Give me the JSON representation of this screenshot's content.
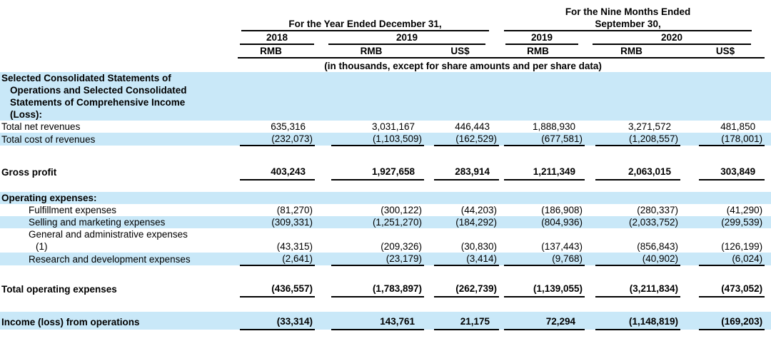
{
  "document": {
    "header": {
      "groups": [
        {
          "title_lines": [
            "For the Year Ended December 31,"
          ],
          "years": [
            {
              "label": "2018"
            },
            {
              "label": "2019"
            }
          ]
        },
        {
          "title_lines": [
            "For the Nine Months Ended",
            "September 30,"
          ],
          "years": [
            {
              "label": "2019"
            },
            {
              "label": "2020"
            }
          ]
        }
      ],
      "currencies": [
        "RMB",
        "RMB",
        "US$",
        "RMB",
        "RMB",
        "US$"
      ],
      "unit_note": "(in thousands, except for share amounts and per share data)"
    },
    "rows": [
      {
        "style": "header",
        "bg": "blue",
        "label_lines": [
          "Selected Consolidated Statements of",
          "Operations and Selected Consolidated",
          "Statements of Comprehensive Income",
          "(Loss):"
        ],
        "values": [
          "",
          "",
          "",
          "",
          "",
          ""
        ]
      },
      {
        "style": "item",
        "bg": "white",
        "label_lines": [
          "Total net revenues"
        ],
        "values": [
          "635,316",
          "3,031,167",
          "446,443",
          "1,888,930",
          "3,271,572",
          "481,850"
        ]
      },
      {
        "style": "item",
        "bg": "blue",
        "underline": true,
        "label_lines": [
          "Total cost of revenues"
        ],
        "values": [
          "(232,073)",
          "(1,103,509)",
          "(162,529)",
          "(677,581)",
          "(1,208,557)",
          "(178,001)"
        ]
      },
      {
        "style": "spacer",
        "h": 22
      },
      {
        "style": "total",
        "bg": "white",
        "underline": true,
        "label_lines": [
          "Gross profit"
        ],
        "values": [
          "403,243",
          "1,927,658",
          "283,914",
          "1,211,349",
          "2,063,015",
          "303,849"
        ]
      },
      {
        "style": "spacer",
        "h": 16
      },
      {
        "style": "subhead",
        "bg": "blue",
        "label_lines": [
          "Operating expenses:"
        ],
        "values": [
          "",
          "",
          "",
          "",
          "",
          ""
        ]
      },
      {
        "style": "item",
        "indent": true,
        "bg": "white",
        "label_lines": [
          "Fulfillment expenses"
        ],
        "values": [
          "(81,270)",
          "(300,122)",
          "(44,203)",
          "(186,908)",
          "(280,337)",
          "(41,290)"
        ]
      },
      {
        "style": "item",
        "indent": true,
        "bg": "blue",
        "label_lines": [
          "Selling and marketing expenses"
        ],
        "values": [
          "(309,331)",
          "(1,251,270)",
          "(184,292)",
          "(804,936)",
          "(2,033,752)",
          "(299,539)"
        ]
      },
      {
        "style": "item",
        "indent": true,
        "bg": "white",
        "label_lines": [
          "General and administrative expenses",
          "(1)"
        ],
        "values": [
          "(43,315)",
          "(209,326)",
          "(30,830)",
          "(137,443)",
          "(856,843)",
          "(126,199)"
        ]
      },
      {
        "style": "item",
        "indent": true,
        "bg": "blue",
        "underline": true,
        "label_lines": [
          "Research and development expenses"
        ],
        "values": [
          "(2,641)",
          "(23,179)",
          "(3,414)",
          "(9,768)",
          "(40,902)",
          "(6,024)"
        ]
      },
      {
        "style": "spacer",
        "h": 18
      },
      {
        "style": "total",
        "bg": "white",
        "underline": true,
        "label_lines": [
          "Total operating expenses"
        ],
        "values": [
          "(436,557)",
          "(1,783,897)",
          "(262,739)",
          "(1,139,055)",
          "(3,211,834)",
          "(473,052)"
        ]
      },
      {
        "style": "spacer",
        "h": 20
      },
      {
        "style": "total",
        "bg": "blue",
        "underline": true,
        "label_lines": [
          "Income (loss) from operations"
        ],
        "values": [
          "(33,314)",
          "143,761",
          "21,175",
          "72,294",
          "(1,148,819)",
          "(169,203)"
        ]
      }
    ]
  }
}
